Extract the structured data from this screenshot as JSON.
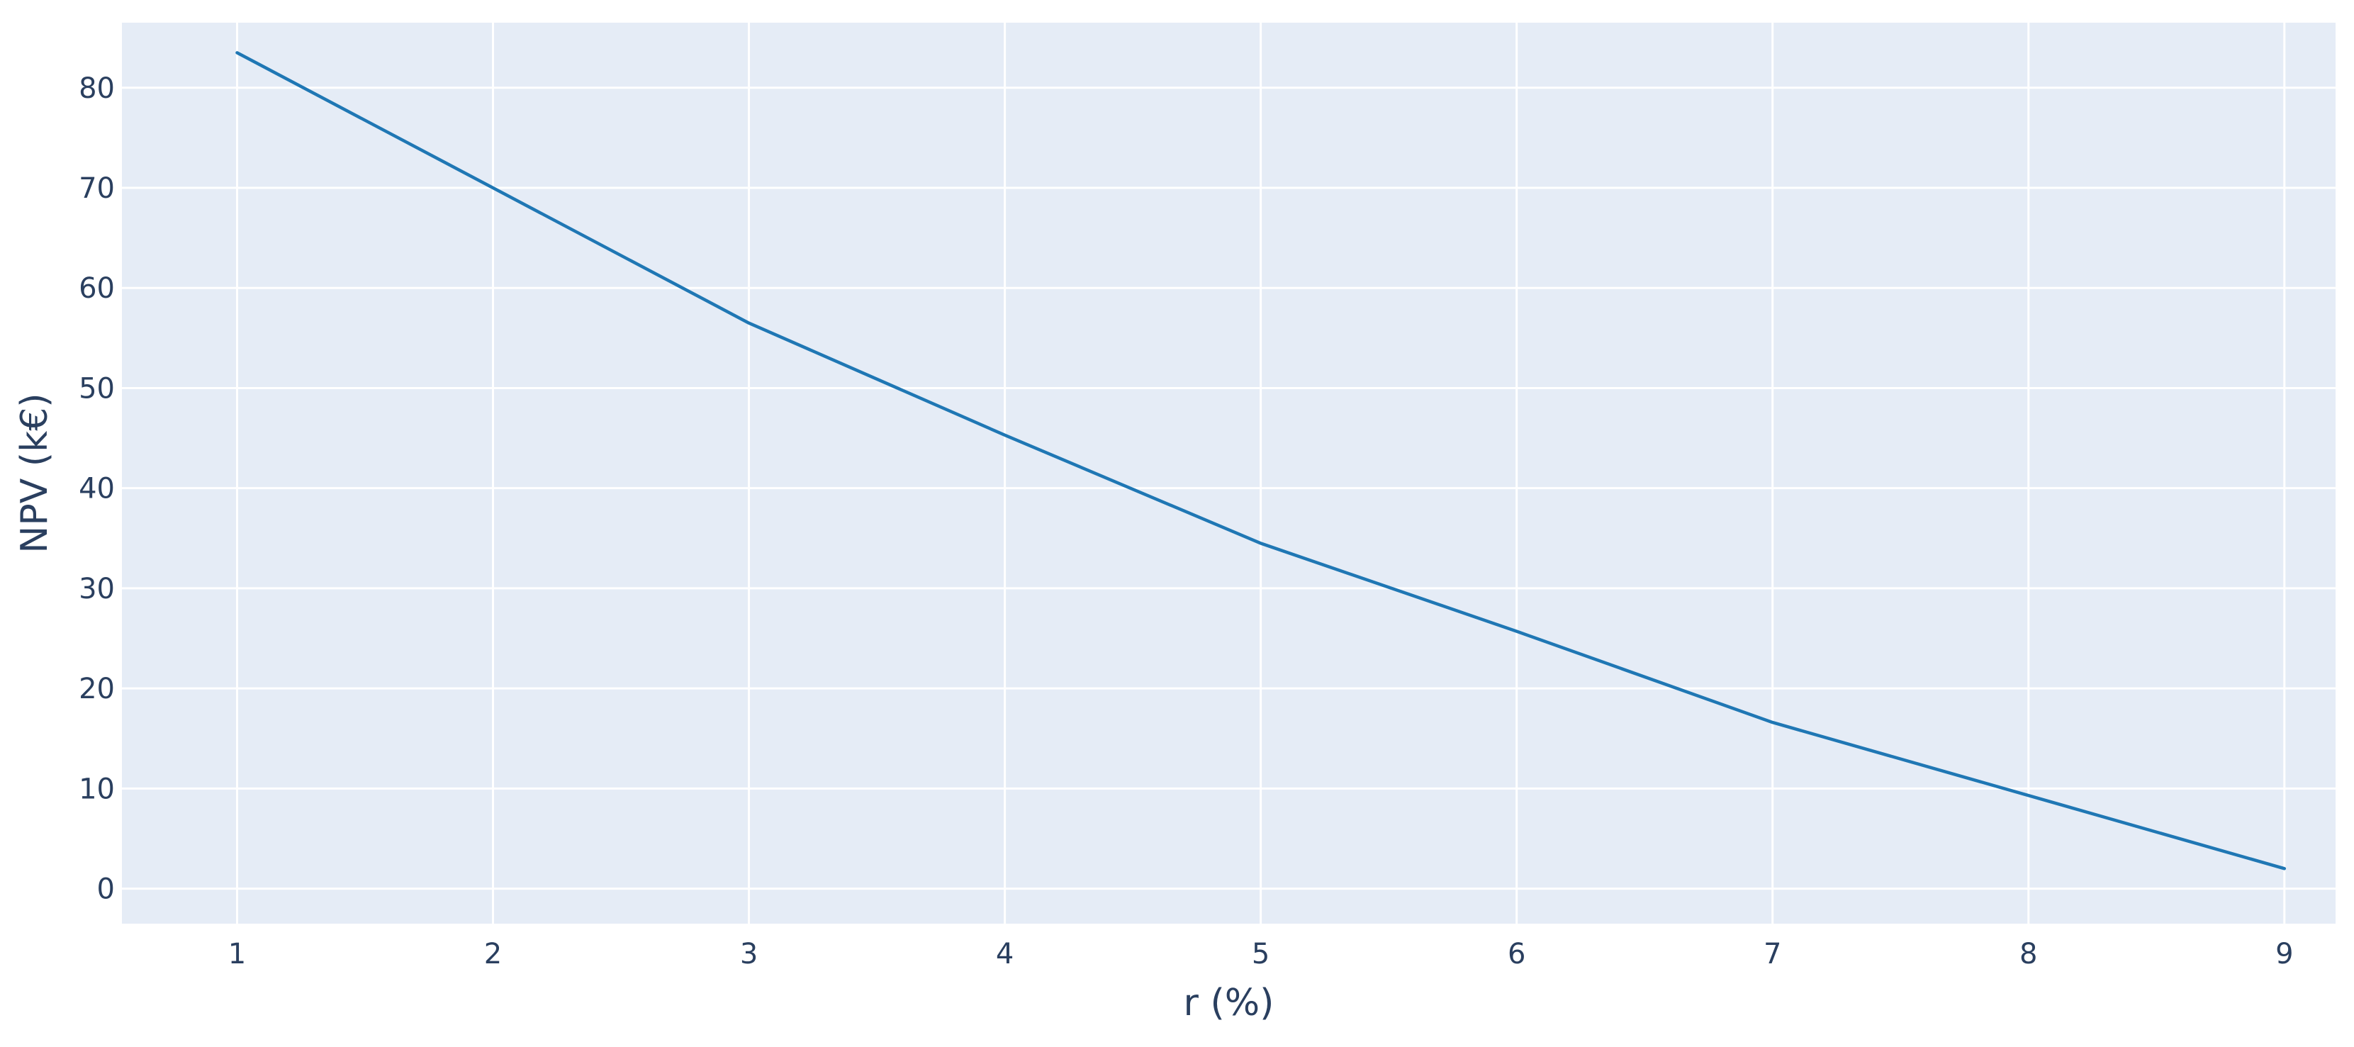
{
  "colors": {
    "plot_background": "#e5ecf6",
    "grid": "#ffffff",
    "text": "#2a3f5f",
    "line": "#1f77b4"
  },
  "chart_data": {
    "type": "line",
    "title": "",
    "xlabel": "r (%)",
    "ylabel": "NPV (k€)",
    "xlim": [
      0.55,
      9.2
    ],
    "ylim": [
      -3.5,
      86.5
    ],
    "grid": true,
    "x_ticks": [
      1,
      2,
      3,
      4,
      5,
      6,
      7,
      8,
      9
    ],
    "y_ticks": [
      0,
      10,
      20,
      30,
      40,
      50,
      60,
      70,
      80
    ],
    "series": [
      {
        "x": [
          1,
          2,
          3,
          4,
          5,
          6,
          7,
          8,
          9
        ],
        "y": [
          83.5,
          70.0,
          56.5,
          45.3,
          34.5,
          25.7,
          16.6,
          9.3,
          2.0
        ]
      }
    ]
  }
}
